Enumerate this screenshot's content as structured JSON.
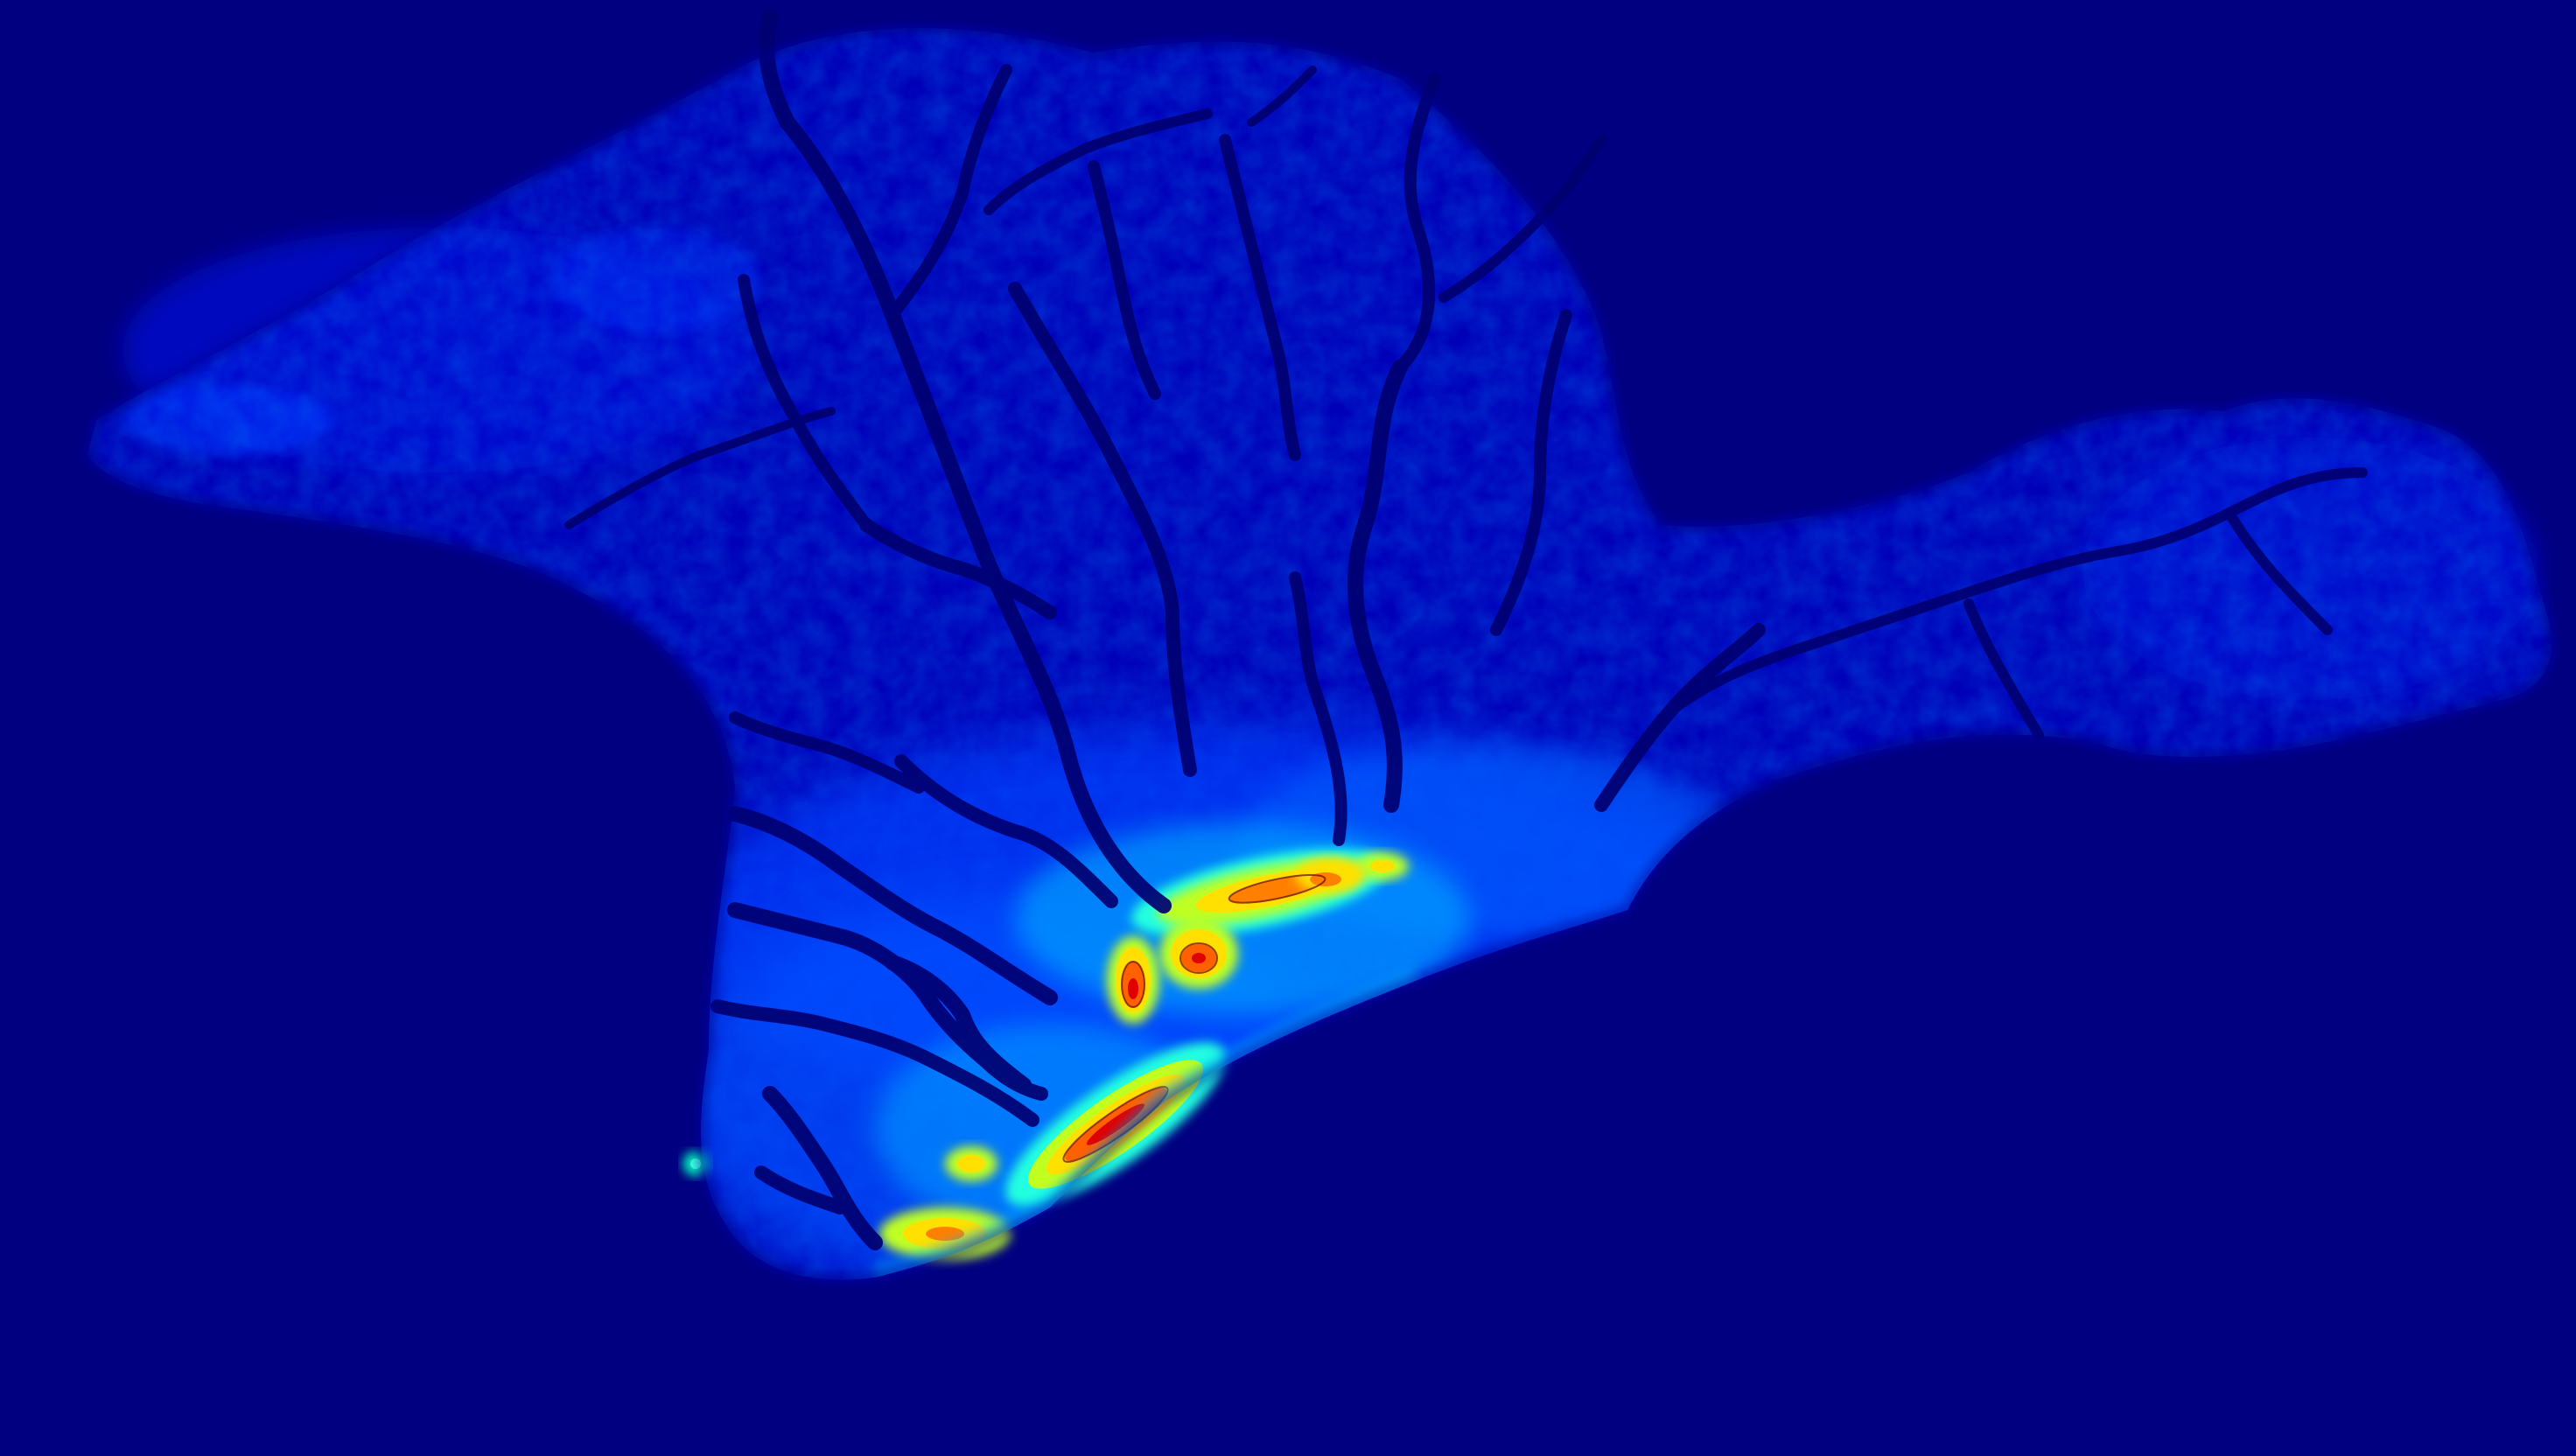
{
  "map": {
    "kind": "elevation-heatmap",
    "colormap": "jet",
    "background_color": "#000080",
    "region_palette": [
      "#00008B",
      "#0000B8",
      "#0010E0",
      "#0040FF",
      "#0070FF",
      "#00B0FF",
      "#20FFE0",
      "#C0FF20",
      "#FFE000",
      "#FF8000",
      "#E00000",
      "#900000"
    ],
    "contours": true,
    "text": []
  }
}
